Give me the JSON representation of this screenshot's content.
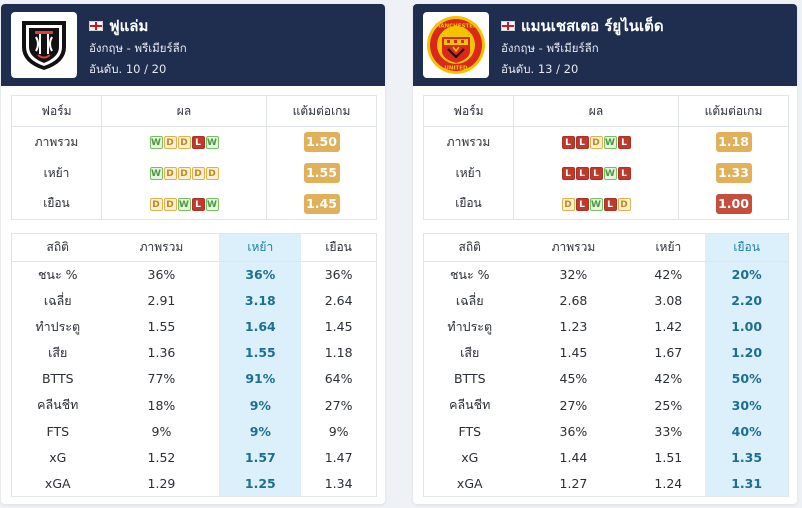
{
  "colors": {
    "header_bg": "#1f2d4e",
    "highlight_bg": "#dcf0fb",
    "win": "#79bd63",
    "draw": "#e0b14f",
    "loss": "#c0392b",
    "ppg_amber": "#e0b05a",
    "ppg_red": "#c44f3c"
  },
  "teams": [
    {
      "name": "ฟูแล่ม",
      "flag_icon": "england-flag-icon",
      "country_league": "อังกฤษ - พรีเมียร์ลีก",
      "rank": "อันดับ. 10 / 20",
      "logo_icon": "fulham-crest-icon",
      "form_headers": [
        "ฟอร์ม",
        "ผล",
        "แต้มต่อเกม"
      ],
      "form_rows": [
        {
          "label": "ภาพรวม",
          "results": [
            "W",
            "D",
            "D",
            "L",
            "W"
          ],
          "ppg": "1.50",
          "ppg_level": "amber"
        },
        {
          "label": "เหย้า",
          "results": [
            "W",
            "D",
            "D",
            "D",
            "D"
          ],
          "ppg": "1.55",
          "ppg_level": "amber"
        },
        {
          "label": "เยือน",
          "results": [
            "D",
            "D",
            "W",
            "L",
            "W"
          ],
          "ppg": "1.45",
          "ppg_level": "amber"
        }
      ],
      "stats_headers": [
        "สถิติ",
        "ภาพรวม",
        "เหย้า",
        "เยือน"
      ],
      "highlight_col": 2,
      "stats_rows": [
        [
          "ชนะ %",
          "36%",
          "36%",
          "36%"
        ],
        [
          "เฉลี่ย",
          "2.91",
          "3.18",
          "2.64"
        ],
        [
          "ทำประตู",
          "1.55",
          "1.64",
          "1.45"
        ],
        [
          "เสีย",
          "1.36",
          "1.55",
          "1.18"
        ],
        [
          "BTTS",
          "77%",
          "91%",
          "64%"
        ],
        [
          "คลีนชีท",
          "18%",
          "9%",
          "27%"
        ],
        [
          "FTS",
          "9%",
          "9%",
          "9%"
        ],
        [
          "xG",
          "1.52",
          "1.57",
          "1.47"
        ],
        [
          "xGA",
          "1.29",
          "1.25",
          "1.34"
        ]
      ]
    },
    {
      "name": "แมนเชสเตอ ร์ยูไนเต็ด",
      "flag_icon": "england-flag-icon",
      "country_league": "อังกฤษ - พรีเมียร์ลีก",
      "rank": "อันดับ. 13 / 20",
      "logo_icon": "manchester-united-crest-icon",
      "logo_text_top": "MANCHESTER",
      "logo_text_bottom": "UNITED",
      "form_headers": [
        "ฟอร์ม",
        "ผล",
        "แต้มต่อเกม"
      ],
      "form_rows": [
        {
          "label": "ภาพรวม",
          "results": [
            "L",
            "L",
            "D",
            "W",
            "L"
          ],
          "ppg": "1.18",
          "ppg_level": "amber"
        },
        {
          "label": "เหย้า",
          "results": [
            "L",
            "L",
            "L",
            "W",
            "L"
          ],
          "ppg": "1.33",
          "ppg_level": "amber"
        },
        {
          "label": "เยือน",
          "results": [
            "D",
            "L",
            "W",
            "L",
            "D"
          ],
          "ppg": "1.00",
          "ppg_level": "red"
        }
      ],
      "stats_headers": [
        "สถิติ",
        "ภาพรวม",
        "เหย้า",
        "เยือน"
      ],
      "highlight_col": 3,
      "stats_rows": [
        [
          "ชนะ %",
          "32%",
          "42%",
          "20%"
        ],
        [
          "เฉลี่ย",
          "2.68",
          "3.08",
          "2.20"
        ],
        [
          "ทำประตู",
          "1.23",
          "1.42",
          "1.00"
        ],
        [
          "เสีย",
          "1.45",
          "1.67",
          "1.20"
        ],
        [
          "BTTS",
          "45%",
          "42%",
          "50%"
        ],
        [
          "คลีนชีท",
          "27%",
          "25%",
          "30%"
        ],
        [
          "FTS",
          "36%",
          "33%",
          "40%"
        ],
        [
          "xG",
          "1.44",
          "1.51",
          "1.35"
        ],
        [
          "xGA",
          "1.27",
          "1.24",
          "1.31"
        ]
      ]
    }
  ]
}
